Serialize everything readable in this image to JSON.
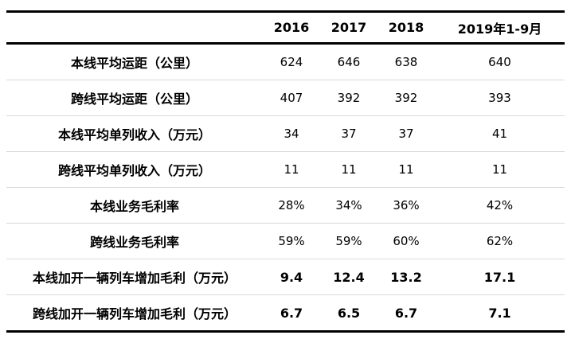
{
  "colors": {
    "heavy_rule": "#000000",
    "light_rule": "#d9d9d9",
    "background": "#ffffff",
    "text": "#000000"
  },
  "chart_data": {
    "type": "table",
    "title": "",
    "corner_label": "",
    "columns": [
      "2016",
      "2017",
      "2018",
      "2019年1-9月"
    ],
    "rows": [
      {
        "label": "本线平均运距（公里）",
        "values": [
          "624",
          "646",
          "638",
          "640"
        ],
        "emphasis": false
      },
      {
        "label": "跨线平均运距（公里）",
        "values": [
          "407",
          "392",
          "392",
          "393"
        ],
        "emphasis": false
      },
      {
        "label": "本线平均单列收入（万元）",
        "values": [
          "34",
          "37",
          "37",
          "41"
        ],
        "emphasis": false
      },
      {
        "label": "跨线平均单列收入（万元）",
        "values": [
          "11",
          "11",
          "11",
          "11"
        ],
        "emphasis": false
      },
      {
        "label": "本线业务毛利率",
        "values": [
          "28%",
          "34%",
          "36%",
          "42%"
        ],
        "emphasis": false
      },
      {
        "label": "跨线业务毛利率",
        "values": [
          "59%",
          "59%",
          "60%",
          "62%"
        ],
        "emphasis": false
      },
      {
        "label": "本线加开一辆列车增加毛利（万元）",
        "values": [
          "9.4",
          "12.4",
          "13.2",
          "17.1"
        ],
        "emphasis": true
      },
      {
        "label": "跨线加开一辆列车增加毛利（万元）",
        "values": [
          "6.7",
          "6.5",
          "6.7",
          "7.1"
        ],
        "emphasis": true
      }
    ]
  }
}
